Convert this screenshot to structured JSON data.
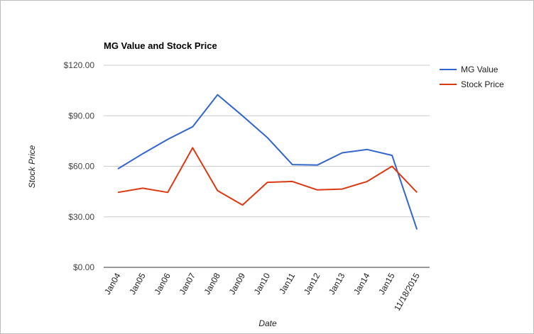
{
  "chart_data": {
    "type": "line",
    "title": "MG Value and Stock Price",
    "xlabel": "Date",
    "ylabel": "Stock Price",
    "categories": [
      "Jan04",
      "Jan05",
      "Jan06",
      "Jan07",
      "Jan08",
      "Jan09",
      "Jan10",
      "Jan11",
      "Jan12",
      "Jan13",
      "Jan14",
      "Jan15",
      "11/18/2015"
    ],
    "ylim": [
      0,
      120
    ],
    "yticks": [
      0,
      30,
      60,
      90,
      120
    ],
    "ytick_labels": [
      "$0.00",
      "$30.00",
      "$60.00",
      "$90.00",
      "$120.00"
    ],
    "grid": "horizontal",
    "legend_position": "right",
    "series": [
      {
        "name": "MG Value",
        "color": "#3366cc",
        "values": [
          58.5,
          67.5,
          76.0,
          83.5,
          102.5,
          90.0,
          77.0,
          61.0,
          60.7,
          68.0,
          70.0,
          66.5,
          22.5
        ]
      },
      {
        "name": "Stock Price",
        "color": "#dc3912",
        "values": [
          44.5,
          47.0,
          44.5,
          71.0,
          45.5,
          37.0,
          50.5,
          51.0,
          46.0,
          46.5,
          51.0,
          60.0,
          44.5
        ]
      }
    ]
  }
}
